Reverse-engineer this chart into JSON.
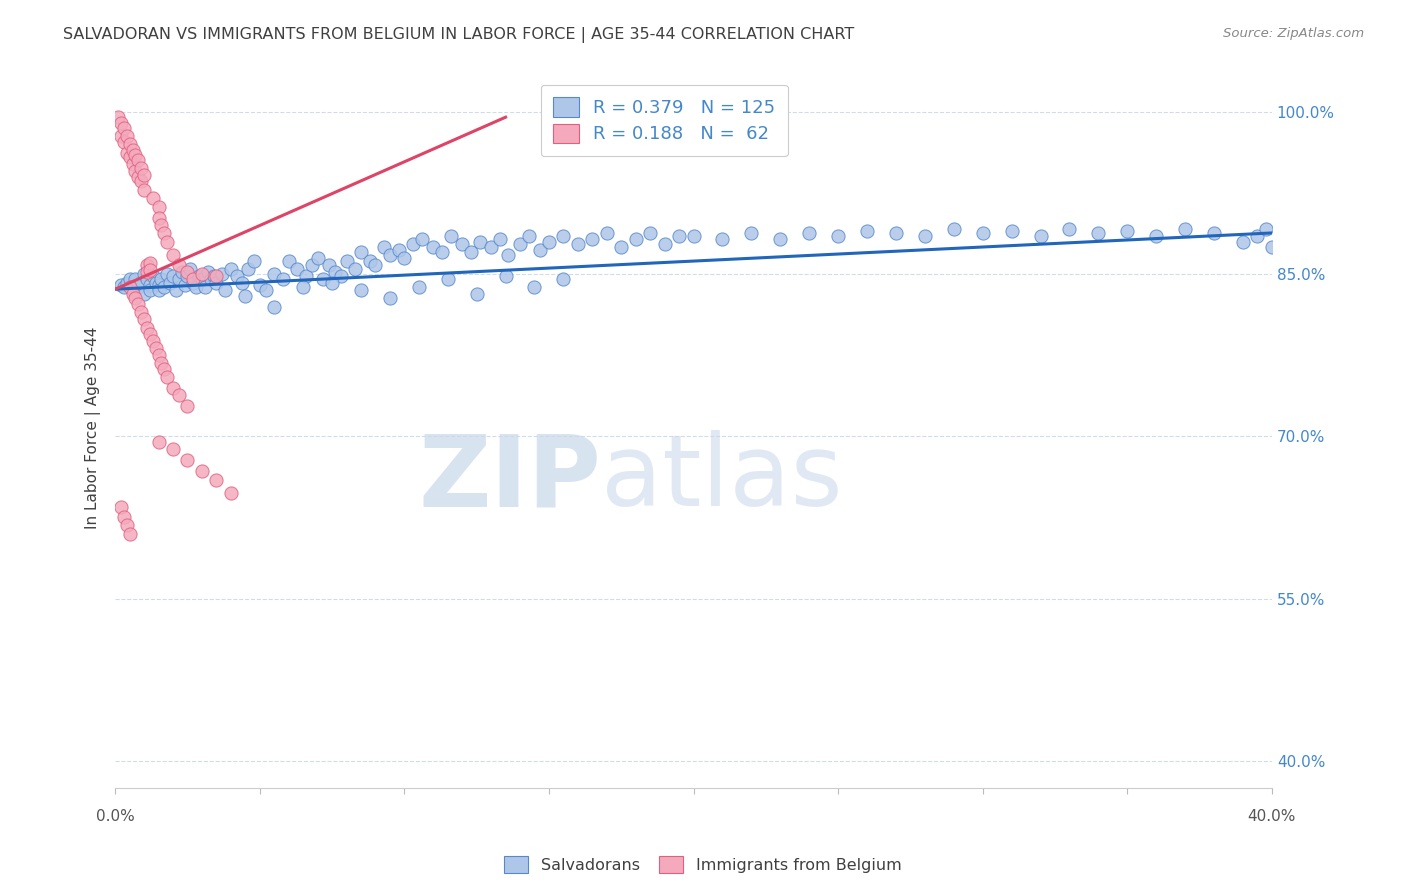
{
  "title": "SALVADORAN VS IMMIGRANTS FROM BELGIUM IN LABOR FORCE | AGE 35-44 CORRELATION CHART",
  "source": "Source: ZipAtlas.com",
  "ylabel": "In Labor Force | Age 35-44",
  "ytick_labels": [
    "100.0%",
    "85.0%",
    "70.0%",
    "55.0%",
    "40.0%"
  ],
  "ytick_values": [
    1.0,
    0.85,
    0.7,
    0.55,
    0.4
  ],
  "xmin": 0.0,
  "xmax": 0.4,
  "ymin": 0.375,
  "ymax": 1.04,
  "blue_color": "#aec6e8",
  "pink_color": "#f4aabc",
  "blue_edge_color": "#5588cc",
  "pink_edge_color": "#e06080",
  "blue_line_color": "#2266bb",
  "pink_line_color": "#dd4466",
  "title_color": "#404040",
  "source_color": "#888888",
  "axis_label_color": "#404040",
  "right_tick_color": "#4488cc",
  "grid_color": "#d0dce8",
  "watermark_zip_color": "#c8d8ea",
  "watermark_atlas_color": "#c8d8ea",
  "blue_trend_x": [
    0.0,
    0.4
  ],
  "blue_trend_y": [
    0.836,
    0.888
  ],
  "pink_trend_x": [
    0.0,
    0.135
  ],
  "pink_trend_y": [
    0.836,
    0.995
  ],
  "blue_scatter_x": [
    0.002,
    0.003,
    0.004,
    0.005,
    0.006,
    0.007,
    0.008,
    0.009,
    0.01,
    0.01,
    0.011,
    0.012,
    0.012,
    0.013,
    0.014,
    0.015,
    0.015,
    0.016,
    0.017,
    0.018,
    0.019,
    0.02,
    0.021,
    0.022,
    0.023,
    0.024,
    0.025,
    0.026,
    0.027,
    0.028,
    0.029,
    0.03,
    0.031,
    0.032,
    0.033,
    0.034,
    0.035,
    0.037,
    0.038,
    0.04,
    0.042,
    0.044,
    0.046,
    0.048,
    0.05,
    0.052,
    0.055,
    0.058,
    0.06,
    0.063,
    0.066,
    0.068,
    0.07,
    0.072,
    0.074,
    0.076,
    0.078,
    0.08,
    0.083,
    0.085,
    0.088,
    0.09,
    0.093,
    0.095,
    0.098,
    0.1,
    0.103,
    0.106,
    0.11,
    0.113,
    0.116,
    0.12,
    0.123,
    0.126,
    0.13,
    0.133,
    0.136,
    0.14,
    0.143,
    0.147,
    0.15,
    0.155,
    0.16,
    0.165,
    0.17,
    0.175,
    0.18,
    0.185,
    0.19,
    0.195,
    0.2,
    0.21,
    0.22,
    0.23,
    0.24,
    0.25,
    0.26,
    0.27,
    0.28,
    0.29,
    0.3,
    0.31,
    0.32,
    0.33,
    0.34,
    0.35,
    0.36,
    0.37,
    0.38,
    0.39,
    0.395,
    0.398,
    0.4,
    0.045,
    0.055,
    0.065,
    0.075,
    0.085,
    0.095,
    0.105,
    0.115,
    0.125,
    0.135,
    0.145,
    0.155
  ],
  "blue_scatter_y": [
    0.84,
    0.838,
    0.842,
    0.845,
    0.835,
    0.845,
    0.838,
    0.842,
    0.85,
    0.832,
    0.845,
    0.84,
    0.835,
    0.848,
    0.842,
    0.84,
    0.835,
    0.845,
    0.838,
    0.85,
    0.842,
    0.848,
    0.835,
    0.845,
    0.852,
    0.84,
    0.848,
    0.855,
    0.842,
    0.838,
    0.848,
    0.845,
    0.838,
    0.852,
    0.845,
    0.848,
    0.842,
    0.85,
    0.835,
    0.855,
    0.848,
    0.842,
    0.855,
    0.862,
    0.84,
    0.835,
    0.85,
    0.845,
    0.862,
    0.855,
    0.848,
    0.858,
    0.865,
    0.845,
    0.858,
    0.852,
    0.848,
    0.862,
    0.855,
    0.87,
    0.862,
    0.858,
    0.875,
    0.868,
    0.872,
    0.865,
    0.878,
    0.882,
    0.875,
    0.87,
    0.885,
    0.878,
    0.87,
    0.88,
    0.875,
    0.882,
    0.868,
    0.878,
    0.885,
    0.872,
    0.88,
    0.885,
    0.878,
    0.882,
    0.888,
    0.875,
    0.882,
    0.888,
    0.878,
    0.885,
    0.885,
    0.882,
    0.888,
    0.882,
    0.888,
    0.885,
    0.89,
    0.888,
    0.885,
    0.892,
    0.888,
    0.89,
    0.885,
    0.892,
    0.888,
    0.89,
    0.885,
    0.892,
    0.888,
    0.88,
    0.885,
    0.892,
    0.875,
    0.83,
    0.82,
    0.838,
    0.842,
    0.835,
    0.828,
    0.838,
    0.845,
    0.832,
    0.848,
    0.838,
    0.845
  ],
  "pink_scatter_x": [
    0.001,
    0.002,
    0.002,
    0.003,
    0.003,
    0.004,
    0.004,
    0.005,
    0.005,
    0.006,
    0.006,
    0.007,
    0.007,
    0.008,
    0.008,
    0.009,
    0.009,
    0.01,
    0.01,
    0.011,
    0.011,
    0.012,
    0.012,
    0.013,
    0.015,
    0.015,
    0.016,
    0.017,
    0.018,
    0.02,
    0.022,
    0.025,
    0.027,
    0.03,
    0.035,
    0.005,
    0.006,
    0.007,
    0.008,
    0.009,
    0.01,
    0.011,
    0.012,
    0.013,
    0.014,
    0.015,
    0.016,
    0.017,
    0.018,
    0.02,
    0.022,
    0.025,
    0.002,
    0.003,
    0.004,
    0.005,
    0.015,
    0.02,
    0.025,
    0.03,
    0.035,
    0.04
  ],
  "pink_scatter_y": [
    0.995,
    0.99,
    0.978,
    0.985,
    0.972,
    0.978,
    0.962,
    0.97,
    0.958,
    0.965,
    0.952,
    0.96,
    0.945,
    0.955,
    0.94,
    0.948,
    0.936,
    0.942,
    0.928,
    0.858,
    0.852,
    0.86,
    0.854,
    0.92,
    0.912,
    0.902,
    0.895,
    0.888,
    0.88,
    0.868,
    0.858,
    0.852,
    0.845,
    0.85,
    0.848,
    0.838,
    0.832,
    0.828,
    0.822,
    0.815,
    0.808,
    0.8,
    0.795,
    0.788,
    0.782,
    0.775,
    0.768,
    0.762,
    0.755,
    0.745,
    0.738,
    0.728,
    0.635,
    0.625,
    0.618,
    0.61,
    0.695,
    0.688,
    0.678,
    0.668,
    0.66,
    0.648
  ]
}
